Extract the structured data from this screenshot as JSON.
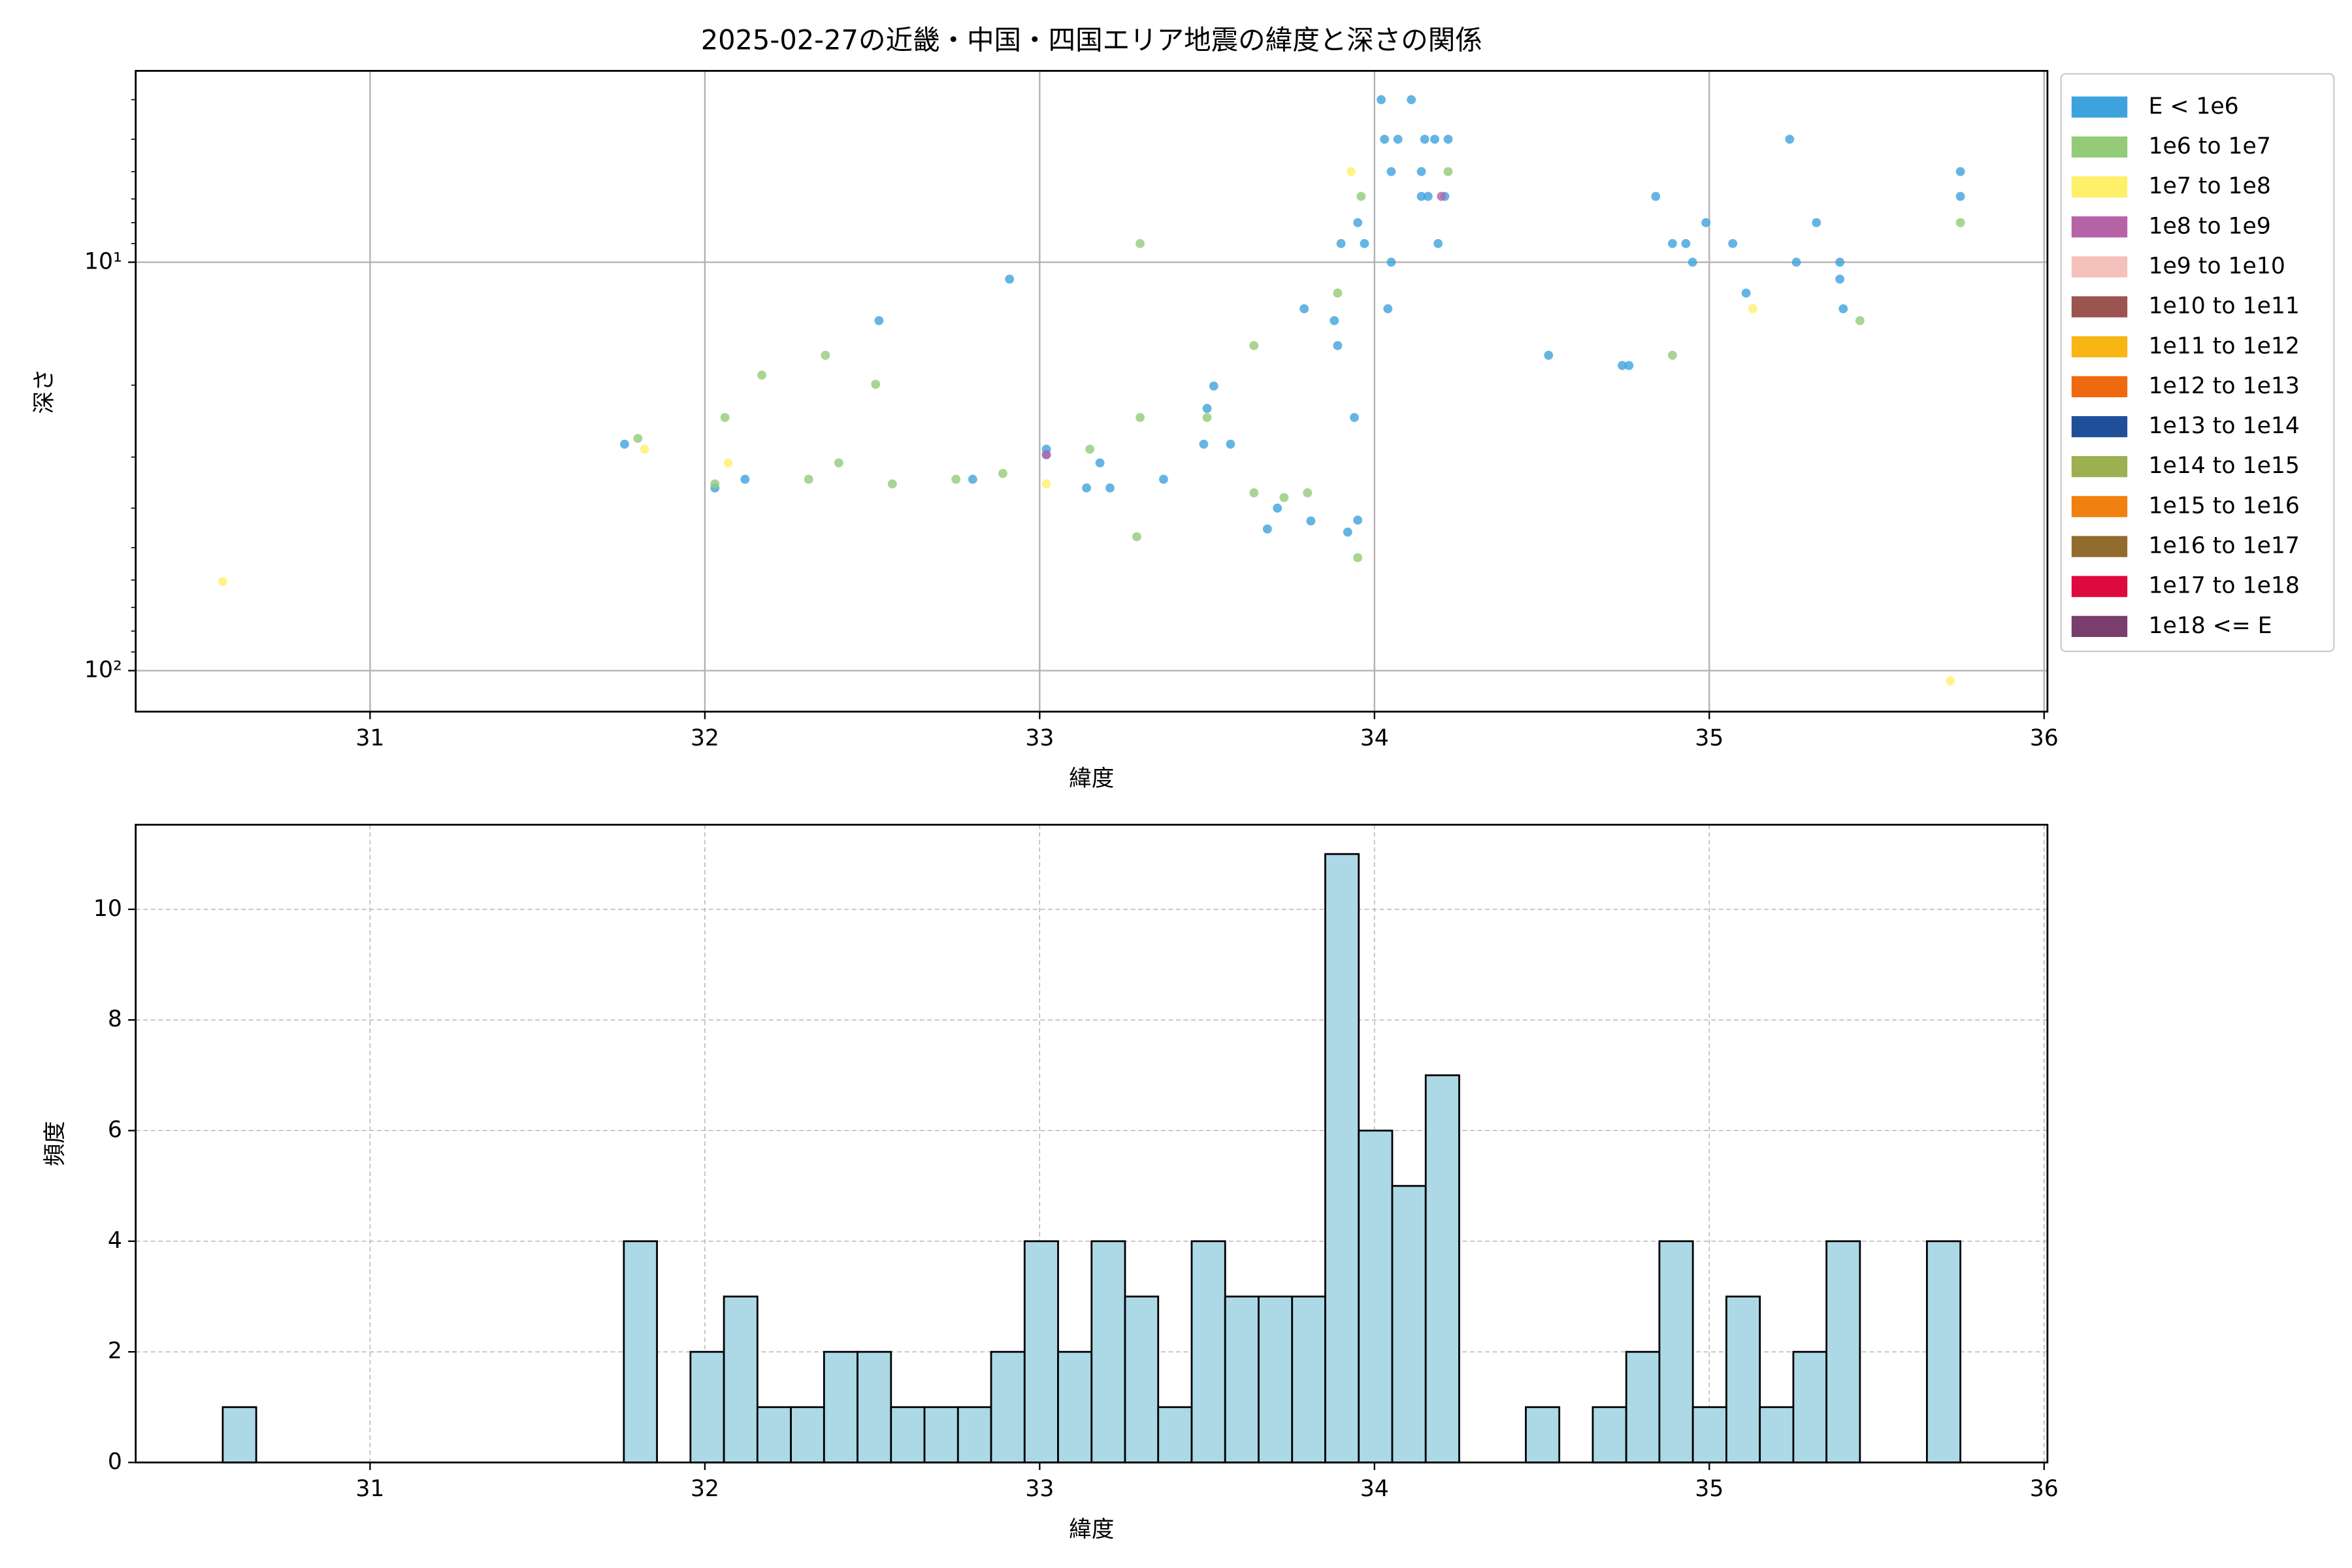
{
  "chart_data": [
    {
      "type": "scatter",
      "title": "2025-02-27の近畿・中国・四国エリア地震の緯度と深さの関係",
      "xlabel": "緯度",
      "ylabel": "深さ",
      "xlim": [
        30.3,
        36.01
      ],
      "xticks": [
        31,
        32,
        33,
        34,
        35,
        36
      ],
      "ylim": [
        3.4,
        126
      ],
      "yscale": "log",
      "yinverted": true,
      "yticks": [
        {
          "value": 10,
          "label": "10¹"
        },
        {
          "value": 100,
          "label": "10²"
        }
      ],
      "yminorticks": [
        4,
        5,
        6,
        7,
        8,
        9,
        20,
        30,
        40,
        50,
        60,
        70,
        80,
        90
      ],
      "grid": true,
      "grid_linestyle": "solid",
      "legend": "outside upper right",
      "series": [
        {
          "name": "E < 1e6",
          "color": "#3ea2dd",
          "x": [
            31.76,
            32.03,
            32.12,
            32.52,
            32.91,
            33.02,
            33.02,
            33.14,
            33.18,
            33.21,
            33.37,
            33.49,
            33.5,
            33.52,
            33.57,
            32.8,
            33.68,
            33.71,
            33.79,
            33.81,
            33.88,
            33.89,
            33.9,
            33.92,
            33.94,
            33.95,
            33.95,
            33.97,
            34.02,
            34.03,
            34.05,
            34.05,
            34.04,
            34.07,
            34.11,
            34.14,
            34.14,
            34.16,
            34.15,
            34.18,
            34.19,
            34.22,
            34.21,
            34.52,
            34.74,
            34.76,
            34.84,
            34.89,
            34.93,
            34.95,
            34.99,
            35.07,
            35.11,
            35.24,
            35.26,
            35.32,
            35.39,
            35.39,
            35.4,
            35.75,
            35.75
          ],
          "values": [
            27.9,
            35.7,
            34,
            13.9,
            11,
            28.7,
            29.6,
            35.7,
            31,
            35.7,
            34,
            27.9,
            22.8,
            20.1,
            27.9,
            34,
            45,
            40,
            13,
            43,
            13.9,
            16,
            9,
            45.8,
            24,
            42.8,
            8,
            9,
            4,
            5,
            6,
            10,
            13,
            5,
            4,
            6.9,
            6,
            6.9,
            5,
            5,
            9,
            5,
            6.9,
            16.9,
            17.9,
            17.9,
            6.9,
            9,
            9,
            10,
            8,
            9,
            11.9,
            5,
            10,
            8,
            10,
            11,
            13,
            6,
            6.9
          ]
        },
        {
          "name": "1e6 to 1e7",
          "color": "#93cb78",
          "x": [
            31.8,
            32.03,
            32.06,
            32.17,
            32.31,
            32.36,
            32.4,
            32.51,
            32.56,
            32.75,
            32.89,
            33.15,
            33.3,
            33.29,
            33.3,
            33.5,
            33.64,
            33.64,
            33.73,
            33.8,
            33.89,
            33.95,
            33.96,
            34.22,
            34.89,
            35.45,
            35.75
          ],
          "values": [
            27,
            34.9,
            24,
            18.9,
            34,
            16.9,
            31,
            19.9,
            34.9,
            34,
            32.9,
            28.7,
            9,
            47,
            24,
            24,
            16,
            36.7,
            37.7,
            36.7,
            11.9,
            52.9,
            6.9,
            6,
            16.9,
            13.9,
            8
          ]
        },
        {
          "name": "1e7 to 1e8",
          "color": "#fff06a",
          "x": [
            30.56,
            31.82,
            32.07,
            33.02,
            33.93,
            35.13,
            35.72
          ],
          "values": [
            60.5,
            28.7,
            31,
            34.9,
            6,
            13,
            106
          ]
        },
        {
          "name": "1e8 to 1e9",
          "color": "#b763a8",
          "x": [
            33.02,
            34.2
          ],
          "values": [
            29.6,
            6.9
          ]
        },
        {
          "name": "1e9 to 1e10",
          "color": "#f5c1bb",
          "x": [],
          "values": []
        },
        {
          "name": "1e10 to 1e11",
          "color": "#9b5450",
          "x": [],
          "values": []
        },
        {
          "name": "1e11 to 1e12",
          "color": "#f9b514",
          "x": [],
          "values": []
        },
        {
          "name": "1e12 to 1e13",
          "color": "#ef6a0e",
          "x": [],
          "values": []
        },
        {
          "name": "1e13 to 1e14",
          "color": "#1f4f99",
          "x": [],
          "values": []
        },
        {
          "name": "1e14 to 1e15",
          "color": "#9cb050",
          "x": [],
          "values": []
        },
        {
          "name": "1e15 to 1e16",
          "color": "#f08010",
          "x": [],
          "values": []
        },
        {
          "name": "1e16 to 1e17",
          "color": "#926c2e",
          "x": [],
          "values": []
        },
        {
          "name": "1e17 to 1e18",
          "color": "#de0a3f",
          "x": [],
          "values": []
        },
        {
          "name": "1e18 <= E",
          "color": "#7a3e6e",
          "x": [],
          "values": []
        }
      ]
    },
    {
      "type": "histogram",
      "xlabel": "緯度",
      "ylabel": "頻度",
      "xlim": [
        30.3,
        36.01
      ],
      "xticks": [
        31,
        32,
        33,
        34,
        35,
        36
      ],
      "ylim": [
        0,
        11.53
      ],
      "yticks": [
        0,
        2,
        4,
        6,
        8,
        10
      ],
      "grid": true,
      "grid_linestyle": "dashed",
      "color": "#add8e6",
      "edgecolor": "#000000",
      "bins": [
        30.56,
        30.66,
        30.76,
        30.859,
        30.959,
        31.059,
        31.159,
        31.259,
        31.358,
        31.458,
        31.558,
        31.658,
        31.758,
        31.857,
        31.957,
        32.057,
        32.157,
        32.257,
        32.356,
        32.456,
        32.556,
        32.656,
        32.756,
        32.855,
        32.955,
        33.055,
        33.155,
        33.255,
        33.354,
        33.454,
        33.554,
        33.654,
        33.754,
        33.853,
        33.953,
        34.053,
        34.153,
        34.253,
        34.352,
        34.452,
        34.552,
        34.652,
        34.752,
        34.851,
        34.951,
        35.051,
        35.151,
        35.251,
        35.35,
        35.45,
        35.55,
        35.65,
        35.75
      ],
      "values": [
        1,
        0,
        0,
        0,
        0,
        0,
        0,
        0,
        0,
        0,
        0,
        0,
        4,
        0,
        2,
        3,
        1,
        1,
        2,
        2,
        1,
        1,
        1,
        2,
        4,
        2,
        4,
        3,
        1,
        4,
        3,
        3,
        3,
        11,
        6,
        5,
        7,
        0,
        0,
        1,
        0,
        1,
        2,
        4,
        1,
        3,
        1,
        2,
        4,
        0,
        0,
        4
      ]
    }
  ]
}
